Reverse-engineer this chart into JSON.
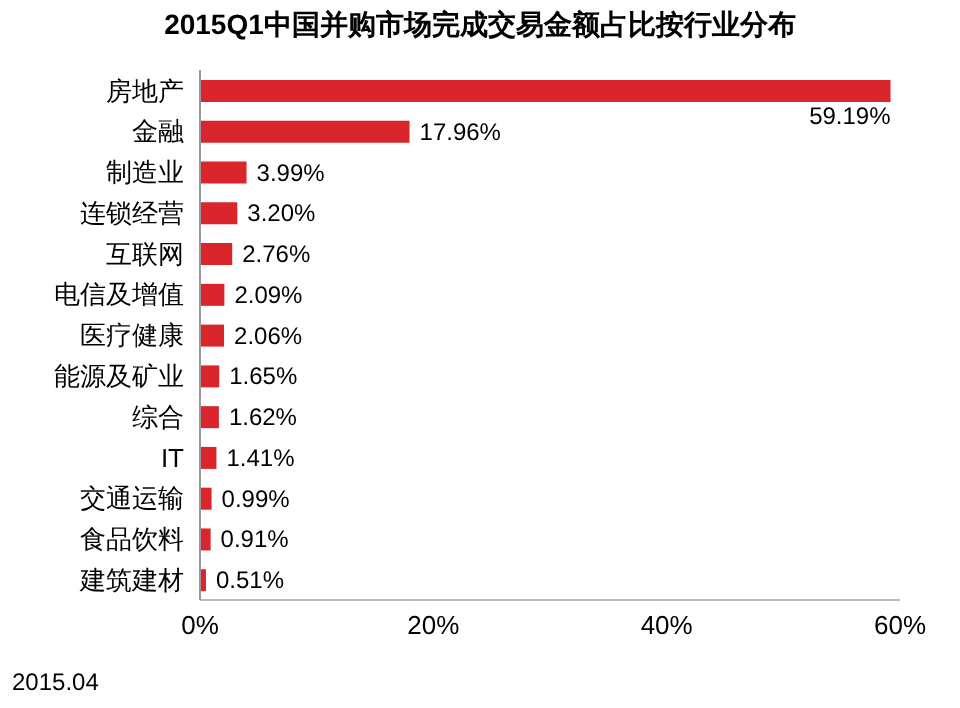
{
  "chart_data": {
    "type": "bar",
    "orientation": "horizontal",
    "title": "2015Q1中国并购市场完成交易金额占比按行业分布",
    "categories": [
      "房地产",
      "金融",
      "制造业",
      "连锁经营",
      "互联网",
      "电信及增值",
      "医疗健康",
      "能源及矿业",
      "综合",
      "IT",
      "交通运输",
      "食品饮料",
      "建筑建材"
    ],
    "values": [
      59.19,
      17.96,
      3.99,
      3.2,
      2.76,
      2.09,
      2.06,
      1.65,
      1.62,
      1.41,
      0.99,
      0.91,
      0.51
    ],
    "value_labels": [
      "59.19%",
      "17.96%",
      "3.99%",
      "3.20%",
      "2.76%",
      "2.09%",
      "2.06%",
      "1.65%",
      "1.62%",
      "1.41%",
      "0.99%",
      "0.91%",
      "0.51%"
    ],
    "color": "#d9252b",
    "xlim": [
      0,
      60
    ],
    "xticks": [
      {
        "value": 0,
        "label": "0%"
      },
      {
        "value": 20,
        "label": "20%"
      },
      {
        "value": 40,
        "label": "40%"
      },
      {
        "value": 60,
        "label": "60%"
      }
    ],
    "grid": false,
    "annotations": [
      "2015.04"
    ]
  }
}
